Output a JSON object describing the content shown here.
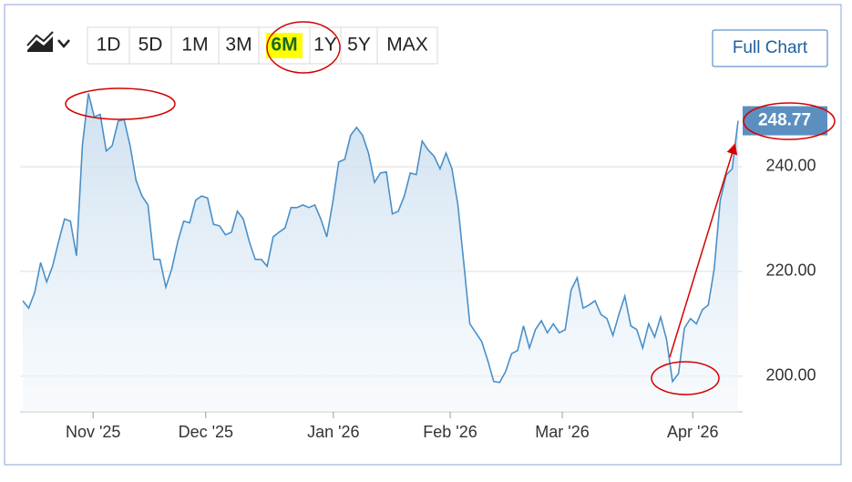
{
  "chart_data": {
    "type": "line",
    "range_buttons": [
      "1D",
      "5D",
      "1M",
      "3M",
      "6M",
      "1Y",
      "5Y",
      "MAX"
    ],
    "selected_range": 4,
    "full_chart_button": "Full Chart",
    "series": [
      {
        "color": "#4a90c8",
        "values": [
          214.4,
          213,
          216,
          221.7,
          218,
          221,
          225.7,
          230,
          229.6,
          223,
          244,
          254,
          249.5,
          250,
          243,
          244,
          248.7,
          249,
          244,
          237.4,
          234.4,
          232.7,
          222.3,
          222.3,
          217,
          220.5,
          225.7,
          229.6,
          229.3,
          233.6,
          234.4,
          234,
          229,
          228.7,
          227,
          227.5,
          231.5,
          230,
          225.7,
          222.3,
          222.3,
          221,
          226.6,
          227.5,
          228.3,
          232.2,
          232.2,
          232.7,
          232.2,
          232.7,
          230,
          226.6,
          233.2,
          240.9,
          241.4,
          246,
          247.5,
          246,
          242.6,
          237,
          238.8,
          239,
          231,
          231.5,
          234.4,
          238.8,
          238.5,
          244.9,
          243.2,
          242,
          239.6,
          242.6,
          239.6,
          232.7,
          221.4,
          210,
          208.3,
          206.6,
          203,
          199,
          198.8,
          200.9,
          204.3,
          204.9,
          209.6,
          205.4,
          208.9,
          210.6,
          208.3,
          210,
          208.3,
          208.9,
          216.5,
          218.8,
          213,
          213.6,
          214.4,
          211.8,
          211,
          207.8,
          211.8,
          215.3,
          209.6,
          208.9,
          205.4,
          210,
          207.5,
          211.3,
          207,
          199,
          200.5,
          209.2,
          211,
          210,
          212.7,
          213.6,
          220.5,
          233.6,
          238.4,
          239.6,
          248.77
        ]
      }
    ],
    "xlim": [
      0,
      120
    ],
    "xticks": [
      {
        "value": 11.8,
        "label": "Nov '25"
      },
      {
        "value": 30.7,
        "label": "Dec '25"
      },
      {
        "value": 52.1,
        "label": "Jan '26"
      },
      {
        "value": 71.7,
        "label": "Feb '26"
      },
      {
        "value": 90.5,
        "label": "Mar '26"
      },
      {
        "value": 112.4,
        "label": "Apr '26"
      }
    ],
    "ylim": [
      193.2,
      255.3
    ],
    "yticks": [
      {
        "value": 200,
        "label": "200.00"
      },
      {
        "value": 220,
        "label": "220.00"
      },
      {
        "value": 240,
        "label": "240.00"
      }
    ],
    "grid": true
  }
}
